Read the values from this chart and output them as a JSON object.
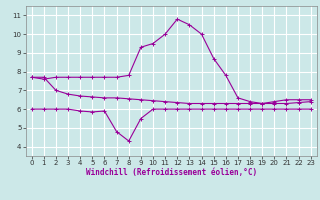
{
  "xlabel": "Windchill (Refroidissement éolien,°C)",
  "background_color": "#cce8e8",
  "grid_color": "#ffffff",
  "line_color": "#990099",
  "xlim": [
    -0.5,
    23.5
  ],
  "ylim": [
    3.5,
    11.5
  ],
  "yticks": [
    4,
    5,
    6,
    7,
    8,
    9,
    10,
    11
  ],
  "xticks": [
    0,
    1,
    2,
    3,
    4,
    5,
    6,
    7,
    8,
    9,
    10,
    11,
    12,
    13,
    14,
    15,
    16,
    17,
    18,
    19,
    20,
    21,
    22,
    23
  ],
  "line1_x": [
    0,
    1,
    2,
    3,
    4,
    5,
    6,
    7,
    8,
    9,
    10,
    11,
    12,
    13,
    14,
    15,
    16,
    17,
    18,
    19,
    20,
    21,
    22,
    23
  ],
  "line1_y": [
    7.7,
    7.6,
    7.7,
    7.7,
    7.7,
    7.7,
    7.7,
    7.7,
    7.8,
    9.3,
    9.5,
    10.0,
    10.8,
    10.5,
    10.0,
    8.7,
    7.8,
    6.6,
    6.4,
    6.3,
    6.4,
    6.5,
    6.5,
    6.5
  ],
  "line2_x": [
    0,
    1,
    2,
    3,
    4,
    5,
    6,
    7,
    8,
    9,
    10,
    11,
    12,
    13,
    14,
    15,
    16,
    17,
    18,
    19,
    20,
    21,
    22,
    23
  ],
  "line2_y": [
    7.7,
    7.7,
    7.0,
    6.8,
    6.7,
    6.65,
    6.6,
    6.6,
    6.55,
    6.5,
    6.45,
    6.4,
    6.35,
    6.3,
    6.3,
    6.3,
    6.3,
    6.3,
    6.3,
    6.3,
    6.3,
    6.3,
    6.35,
    6.4
  ],
  "line3_x": [
    0,
    1,
    2,
    3,
    4,
    5,
    6,
    7,
    8,
    9,
    10,
    11,
    12,
    13,
    14,
    15,
    16,
    17,
    18,
    19,
    20,
    21,
    22,
    23
  ],
  "line3_y": [
    6.0,
    6.0,
    6.0,
    6.0,
    5.9,
    5.85,
    5.9,
    4.8,
    4.3,
    5.5,
    6.0,
    6.0,
    6.0,
    6.0,
    6.0,
    6.0,
    6.0,
    6.0,
    6.0,
    6.0,
    6.0,
    6.0,
    6.0,
    6.0
  ],
  "xlabel_fontsize": 5.5,
  "tick_fontsize": 5,
  "linewidth": 0.8,
  "markersize": 3
}
